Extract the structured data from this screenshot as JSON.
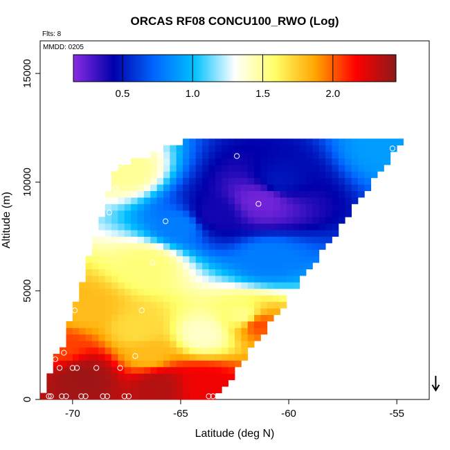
{
  "chart_data": {
    "type": "heatmap",
    "title": "ORCAS RF08 CONCU100_RWO (Log)",
    "annotations": {
      "flights": "Flts: 8",
      "date": "MMDD: 0205"
    },
    "xlabel": "Latitude (deg N)",
    "ylabel": "Altitude (m)",
    "xlim": [
      -71.5,
      -53.5
    ],
    "ylim": [
      0,
      16500
    ],
    "x_ticks": [
      -70,
      -65,
      -60,
      -55
    ],
    "y_ticks": [
      0,
      5000,
      10000,
      15000
    ],
    "x_tick_labels": [
      "-70",
      "-65",
      "-60",
      "-55"
    ],
    "y_tick_labels": [
      "0",
      "5000",
      "10000",
      "15000"
    ],
    "colorbar": {
      "range": [
        0.15,
        2.45
      ],
      "ticks": [
        0.5,
        1.0,
        1.5,
        2.0
      ],
      "tick_labels": [
        "0.5",
        "1.0",
        "1.5",
        "2.0"
      ],
      "colors": [
        "#8a2be2",
        "#0000aa",
        "#0066ff",
        "#00c0ff",
        "#ffffff",
        "#ffff66",
        "#ffa500",
        "#ff0000",
        "#8b1a1a"
      ]
    },
    "cell_size": {
      "lat": 0.3,
      "alt": 300
    },
    "hotspots": [
      {
        "lat": -61.2,
        "alt": 9200,
        "value": 0.2,
        "weight": 1.0
      },
      {
        "lat": -63.5,
        "alt": 8500,
        "value": 0.4,
        "weight": 0.8
      },
      {
        "lat": -60.5,
        "alt": 10000,
        "value": 0.5,
        "weight": 0.6
      },
      {
        "lat": -65.0,
        "alt": 8000,
        "value": 0.8,
        "weight": 0.5
      },
      {
        "lat": -55.5,
        "alt": 11600,
        "value": 0.9,
        "weight": 0.4
      },
      {
        "lat": -61.0,
        "alt": 6500,
        "value": 0.8,
        "weight": 0.4
      },
      {
        "lat": -67.5,
        "alt": 10500,
        "value": 1.5,
        "weight": 0.3
      },
      {
        "lat": -66.5,
        "alt": 6200,
        "value": 1.55,
        "weight": 0.5
      },
      {
        "lat": -69.5,
        "alt": 4200,
        "value": 1.8,
        "weight": 0.7
      },
      {
        "lat": -67.0,
        "alt": 3200,
        "value": 1.7,
        "weight": 0.5
      },
      {
        "lat": -64.0,
        "alt": 3000,
        "value": 1.4,
        "weight": 0.4
      },
      {
        "lat": -62.0,
        "alt": 3800,
        "value": 1.5,
        "weight": 0.3
      },
      {
        "lat": -70.5,
        "alt": 2400,
        "value": 2.05,
        "weight": 0.5
      },
      {
        "lat": -66.5,
        "alt": 2100,
        "value": 1.8,
        "weight": 0.5
      },
      {
        "lat": -69.5,
        "alt": 1000,
        "value": 2.4,
        "weight": 1.0
      },
      {
        "lat": -66.0,
        "alt": 600,
        "value": 2.35,
        "weight": 0.8
      },
      {
        "lat": -64.0,
        "alt": 600,
        "value": 2.2,
        "weight": 0.7
      },
      {
        "lat": -61.5,
        "alt": 3500,
        "value": 2.05,
        "weight": 0.3
      }
    ],
    "samples": [
      {
        "lat": -71.1,
        "alt": 150
      },
      {
        "lat": -71.0,
        "alt": 150
      },
      {
        "lat": -70.5,
        "alt": 150
      },
      {
        "lat": -70.3,
        "alt": 150
      },
      {
        "lat": -69.6,
        "alt": 150
      },
      {
        "lat": -69.4,
        "alt": 150
      },
      {
        "lat": -68.6,
        "alt": 150
      },
      {
        "lat": -68.4,
        "alt": 150
      },
      {
        "lat": -67.6,
        "alt": 150
      },
      {
        "lat": -67.4,
        "alt": 150
      },
      {
        "lat": -63.7,
        "alt": 150
      },
      {
        "lat": -63.5,
        "alt": 150
      },
      {
        "lat": -70.6,
        "alt": 1450
      },
      {
        "lat": -70.0,
        "alt": 1450
      },
      {
        "lat": -69.8,
        "alt": 1450
      },
      {
        "lat": -68.9,
        "alt": 1450
      },
      {
        "lat": -67.8,
        "alt": 1450
      },
      {
        "lat": -70.8,
        "alt": 1850
      },
      {
        "lat": -70.4,
        "alt": 2150
      },
      {
        "lat": -67.1,
        "alt": 2000
      },
      {
        "lat": -70.3,
        "alt": 4100
      },
      {
        "lat": -69.9,
        "alt": 4100
      },
      {
        "lat": -66.8,
        "alt": 4100
      },
      {
        "lat": -66.3,
        "alt": 6300
      },
      {
        "lat": -68.3,
        "alt": 8600
      },
      {
        "lat": -65.7,
        "alt": 8200
      },
      {
        "lat": -61.4,
        "alt": 9000
      },
      {
        "lat": -68.0,
        "alt": 9700
      },
      {
        "lat": -67.8,
        "alt": 10800
      },
      {
        "lat": -62.4,
        "alt": 11200
      },
      {
        "lat": -55.2,
        "alt": 11550
      }
    ],
    "arrow": {
      "lat": -53.2,
      "alt": 450
    }
  }
}
